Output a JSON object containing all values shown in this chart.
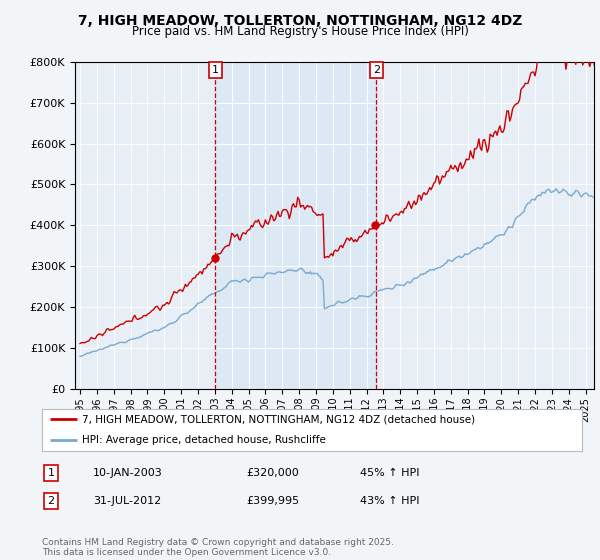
{
  "title": "7, HIGH MEADOW, TOLLERTON, NOTTINGHAM, NG12 4DZ",
  "subtitle": "Price paid vs. HM Land Registry's House Price Index (HPI)",
  "legend_line1": "7, HIGH MEADOW, TOLLERTON, NOTTINGHAM, NG12 4DZ (detached house)",
  "legend_line2": "HPI: Average price, detached house, Rushcliffe",
  "footer": "Contains HM Land Registry data © Crown copyright and database right 2025.\nThis data is licensed under the Open Government Licence v3.0.",
  "sale1_label": "1",
  "sale1_date": "10-JAN-2003",
  "sale1_price": "£320,000",
  "sale1_hpi": "45% ↑ HPI",
  "sale2_label": "2",
  "sale2_date": "31-JUL-2012",
  "sale2_price": "£399,995",
  "sale2_hpi": "43% ↑ HPI",
  "property_color": "#cc0000",
  "hpi_color": "#7aaad0",
  "shade_color": "#dce8f4",
  "background_color": "#f2f5f8",
  "plot_bg_color": "#e8eef5",
  "grid_color": "#ffffff",
  "ylim": [
    0,
    800000
  ],
  "xlim_start": 1994.7,
  "xlim_end": 2025.5,
  "sale1_year": 2003.03,
  "sale2_year": 2012.58,
  "title_fontsize": 10,
  "subtitle_fontsize": 8.5
}
